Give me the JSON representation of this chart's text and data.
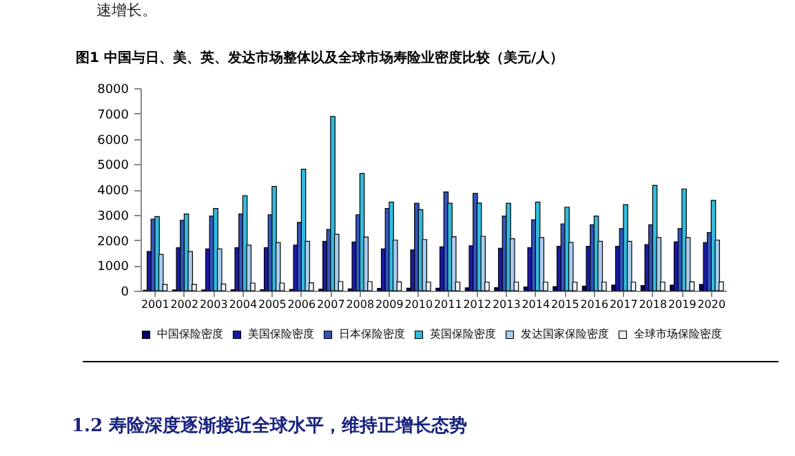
{
  "chart_data": {
    "type": "bar",
    "title": "图1  中国与日、美、英、发达市场整体以及全球市场寿险业密度比较（美元/人）",
    "annotations": [
      "速增长。",
      "1.2 寿险深度逐渐接近全球水平，维持正增长态势"
    ],
    "categories": [
      "2001",
      "2002",
      "2003",
      "2004",
      "2005",
      "2006",
      "2007",
      "2008",
      "2009",
      "2010",
      "2011",
      "2012",
      "2013",
      "2014",
      "2015",
      "2016",
      "2017",
      "2018",
      "2019",
      "2020"
    ],
    "series": [
      {
        "name": "中国保险密度",
        "color": "#000066",
        "values": [
          20,
          30,
          30,
          40,
          40,
          50,
          60,
          70,
          90,
          100,
          100,
          110,
          120,
          150,
          160,
          180,
          220,
          200,
          220,
          250
        ]
      },
      {
        "name": "美国保险密度",
        "color": "#1a1aa6",
        "values": [
          1550,
          1700,
          1650,
          1700,
          1700,
          1800,
          1950,
          1920,
          1650,
          1610,
          1730,
          1770,
          1680,
          1700,
          1750,
          1750,
          1750,
          1820,
          1930,
          1900
        ]
      },
      {
        "name": "日本保险密度",
        "color": "#3355bb",
        "values": [
          2830,
          2780,
          2950,
          3030,
          3000,
          2700,
          2420,
          3000,
          3250,
          3450,
          3900,
          3850,
          2950,
          2800,
          2640,
          2600,
          2450,
          2600,
          2450,
          2300
        ]
      },
      {
        "name": "英国保险密度",
        "color": "#33bbdd",
        "values": [
          2930,
          3030,
          3250,
          3750,
          4120,
          4800,
          6880,
          4630,
          3500,
          3200,
          3450,
          3460,
          3450,
          3500,
          3300,
          2950,
          3400,
          4160,
          4020,
          3570
        ]
      },
      {
        "name": "发达国家保险密度",
        "color": "#aaccee",
        "values": [
          1430,
          1550,
          1650,
          1800,
          1900,
          1950,
          2230,
          2120,
          2000,
          2020,
          2130,
          2150,
          2050,
          2100,
          1910,
          1950,
          1950,
          2100,
          2100,
          2000
        ]
      },
      {
        "name": "全球市场保险密度",
        "color": "#e8f4f8",
        "values": [
          250,
          250,
          260,
          300,
          300,
          310,
          360,
          360,
          350,
          340,
          340,
          340,
          340,
          340,
          340,
          340,
          340,
          340,
          350,
          350
        ]
      }
    ],
    "ylim": [
      0,
      8000
    ],
    "yticks": [
      0,
      1000,
      2000,
      3000,
      4000,
      5000,
      6000,
      7000,
      8000
    ],
    "grid": false,
    "legend": "bottom"
  }
}
